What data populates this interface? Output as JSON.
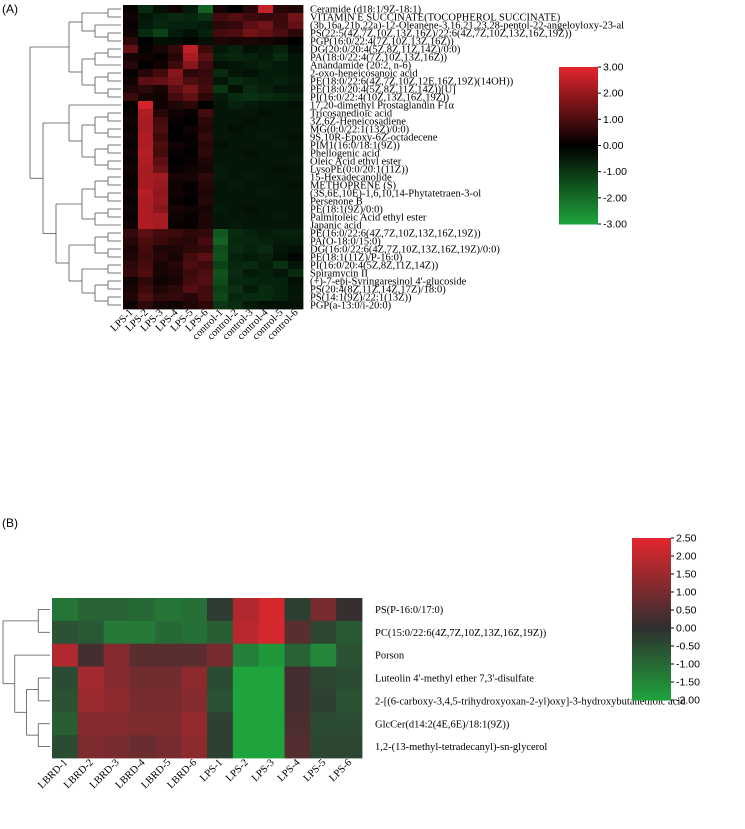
{
  "chart_data": [
    {
      "panel": "(A)",
      "type": "heatmap",
      "columns": [
        "LPS-1",
        "LPS-2",
        "LPS-3",
        "LPS-4",
        "LPS-5",
        "LPS-6",
        "control-1",
        "control-2",
        "control-3",
        "control-4",
        "control-5",
        "control-6"
      ],
      "rows": [
        "Ceramide (d18:1/9Z-18:1)",
        "VITAMIN E SUCCINATE(TOCOPHEROL SUCCINATE)",
        "(3b,16a,21b,22a)-12-Oleanene-3,16,21,23,28-pentol-22-angeloyloxy-23-al",
        "PS(22:5(4Z,7Z,10Z,13Z,16Z)/22:6(4Z,7Z,10Z,13Z,16Z,19Z))",
        "PGP(16:0/22:4(7Z,10Z,13Z,16Z))",
        "DG(20:0/20:4(5Z,8Z,11Z,14Z)/0:0)",
        "PA(18:0/22:4(7Z,10Z,13Z,16Z))",
        "Anandamide (20:2, n-6)",
        "2-oxo-heneicosanoic acid",
        "PE(18:0/22:6(4Z,7Z,10Z,12E,16Z,19Z)(14OH))",
        "PE(18:0/20:4(5Z,8Z,11Z,14Z))[U]",
        "PI(16:0/22:4(10Z,13Z,16Z,19Z))",
        "17,20-dimethyl Prostaglandin F1α",
        "Tricosanedioic acid",
        "3Z,6Z-Heneicosadiene",
        "MG(0:0/22:1(13Z)/0:0)",
        "9S,10R-Epoxy-6Z-octadecene",
        "PIM1(16:0/18:1(9Z))",
        "Phellogenic acid",
        "Oleic Acid ethyl ester",
        "LysoPE(0:0/20:1(11Z))",
        "15-Hexadecanolide",
        "METHOPRENE (S)",
        "(3S,6E,10E)-1,6,10,14-Phytatetraen-3-ol",
        "Persenone B",
        "PE(18:1(9Z)/0:0)",
        "Palmitoleic Acid ethyl ester",
        "Japanic acid",
        "PE(16:0/22:6(4Z,7Z,10Z,13Z,16Z,19Z))",
        "PA(O-18:0/15:0)",
        "DG(16:0/22:6(4Z,7Z,10Z,13Z,16Z,19Z)/0:0)",
        "PE(18:1(11Z)/P-16:0)",
        "PI(16:0/20:4(5Z,8Z,11Z,14Z))",
        "Spiramycin II",
        "(+)-7-epi-Syringaresinol 4'-glucoside",
        "PS(20:4(8Z,11Z,14Z,17Z)/18:0)",
        "PS(14:1(9Z)/22:1(13Z))",
        "PGP(a-13:0/i-20:0)"
      ],
      "values": [
        [
          0.1,
          -0.8,
          -0.3,
          0.2,
          -0.5,
          -1.8,
          0.3,
          0.0,
          0.5,
          2.6,
          0.5,
          0.4
        ],
        [
          0.2,
          -0.4,
          -0.6,
          -0.8,
          -0.7,
          -0.9,
          0.9,
          1.1,
          0.8,
          0.7,
          0.8,
          1.5
        ],
        [
          0.1,
          -0.5,
          -0.7,
          -0.6,
          -0.6,
          -0.5,
          0.6,
          0.7,
          1.2,
          1.5,
          0.8,
          1.3
        ],
        [
          0.2,
          -0.8,
          -1.2,
          -0.5,
          -0.3,
          -0.6,
          0.9,
          1.0,
          1.5,
          1.3,
          1.0,
          0.6
        ],
        [
          0.6,
          0.0,
          -0.3,
          -0.2,
          -0.1,
          -0.3,
          0.4,
          0.3,
          0.4,
          0.3,
          0.2,
          0.0
        ],
        [
          1.3,
          0.1,
          0.3,
          0.7,
          2.5,
          0.8,
          -0.4,
          -0.6,
          -0.3,
          -0.4,
          -0.6,
          -0.2
        ],
        [
          0.3,
          0.2,
          0.1,
          0.5,
          2.2,
          1.2,
          -0.6,
          -0.7,
          -0.6,
          -0.5,
          -0.8,
          -0.4
        ],
        [
          0.5,
          0.0,
          0.2,
          0.8,
          1.8,
          0.9,
          -0.3,
          -0.4,
          -0.5,
          -0.6,
          -0.5,
          -0.4
        ],
        [
          0.1,
          0.5,
          0.9,
          1.8,
          0.6,
          0.7,
          -0.8,
          -0.4,
          -0.3,
          -0.5,
          -0.5,
          -0.4
        ],
        [
          0.2,
          1.2,
          1.3,
          1.6,
          1.0,
          0.8,
          -0.4,
          -0.8,
          -0.6,
          -0.5,
          -0.6,
          -0.5
        ],
        [
          0.4,
          0.6,
          0.3,
          1.2,
          1.6,
          0.9,
          -1.0,
          -0.3,
          -0.8,
          -0.6,
          -0.4,
          -0.4
        ],
        [
          0.8,
          0.3,
          0.2,
          0.9,
          1.3,
          0.6,
          -0.5,
          -0.8,
          -0.9,
          -0.8,
          -0.7,
          -0.6
        ],
        [
          0.0,
          2.8,
          0.2,
          0.4,
          0.6,
          0.0,
          -0.4,
          -0.6,
          -0.5,
          -0.4,
          -0.4,
          -0.3
        ],
        [
          0.1,
          2.3,
          0.5,
          0.2,
          0.1,
          0.9,
          -0.4,
          -0.4,
          -0.4,
          -0.3,
          -0.4,
          -0.4
        ],
        [
          0.2,
          2.2,
          0.9,
          0.1,
          0.0,
          0.6,
          -0.4,
          -0.4,
          -0.3,
          -0.4,
          -0.4,
          -0.4
        ],
        [
          0.1,
          2.2,
          1.0,
          0.0,
          0.2,
          0.5,
          -0.4,
          -0.3,
          -0.4,
          -0.4,
          -0.4,
          -0.4
        ],
        [
          0.2,
          2.3,
          0.8,
          0.0,
          0.1,
          0.7,
          -0.4,
          -0.4,
          -0.4,
          -0.5,
          -0.4,
          -0.3
        ],
        [
          0.1,
          2.3,
          1.0,
          0.2,
          0.1,
          0.5,
          -0.3,
          -0.4,
          -0.4,
          -0.4,
          -0.5,
          -0.4
        ],
        [
          0.2,
          2.4,
          0.9,
          0.1,
          0.0,
          0.6,
          -0.4,
          -0.4,
          -0.3,
          -0.4,
          -0.4,
          -0.4
        ],
        [
          0.1,
          2.3,
          1.2,
          0.0,
          0.1,
          0.4,
          -0.4,
          -0.4,
          -0.4,
          -0.4,
          -0.4,
          -0.5
        ],
        [
          0.2,
          2.2,
          1.4,
          0.1,
          0.2,
          0.3,
          -0.5,
          -0.4,
          -0.4,
          -0.4,
          -0.3,
          -0.4
        ],
        [
          0.1,
          2.2,
          2.1,
          0.3,
          0.3,
          0.6,
          -0.5,
          -0.4,
          -0.5,
          -0.4,
          -0.4,
          -0.4
        ],
        [
          0.1,
          2.2,
          2.0,
          0.2,
          0.1,
          0.5,
          -0.4,
          -0.5,
          -0.4,
          -0.4,
          -0.4,
          -0.3
        ],
        [
          0.2,
          2.4,
          1.9,
          0.2,
          0.1,
          0.4,
          -0.4,
          -0.4,
          -0.4,
          -0.5,
          -0.4,
          -0.4
        ],
        [
          0.1,
          2.3,
          2.0,
          0.1,
          0.0,
          0.5,
          -0.4,
          -0.4,
          -0.4,
          -0.4,
          -0.4,
          -0.4
        ],
        [
          0.2,
          2.3,
          1.8,
          0.3,
          0.2,
          0.3,
          -0.5,
          -0.4,
          -0.3,
          -0.4,
          -0.4,
          -0.4
        ],
        [
          0.1,
          2.3,
          2.2,
          0.2,
          0.1,
          0.4,
          -0.4,
          -0.4,
          -0.4,
          -0.4,
          -0.5,
          -0.4
        ],
        [
          0.2,
          2.3,
          2.2,
          0.1,
          0.1,
          0.4,
          -0.4,
          -0.5,
          -0.4,
          -0.4,
          -0.4,
          -0.4
        ],
        [
          0.7,
          1.2,
          0.9,
          0.8,
          0.6,
          0.7,
          -1.6,
          -0.8,
          -0.6,
          -0.5,
          -0.6,
          -0.6
        ],
        [
          0.5,
          1.0,
          0.8,
          0.6,
          0.5,
          0.9,
          -1.8,
          -0.7,
          -0.7,
          -0.6,
          -0.5,
          -0.5
        ],
        [
          0.3,
          0.9,
          0.4,
          0.4,
          0.6,
          0.7,
          -1.4,
          -0.8,
          -0.6,
          -0.8,
          -0.4,
          -0.3
        ],
        [
          0.4,
          0.8,
          0.5,
          0.3,
          0.9,
          1.2,
          -1.5,
          -0.6,
          -0.5,
          -0.6,
          -0.3,
          -0.1
        ],
        [
          0.6,
          0.9,
          0.3,
          0.5,
          1.0,
          0.8,
          -1.2,
          -0.7,
          -0.8,
          -0.5,
          -0.9,
          -0.4
        ],
        [
          0.7,
          1.0,
          0.3,
          0.4,
          0.8,
          1.0,
          -1.5,
          -0.8,
          -0.5,
          -0.6,
          -0.4,
          -0.8
        ],
        [
          0.2,
          0.6,
          0.2,
          0.3,
          0.9,
          1.1,
          -1.4,
          -0.7,
          -0.7,
          -0.6,
          -0.6,
          -0.3
        ],
        [
          0.3,
          0.8,
          0.4,
          0.6,
          1.1,
          0.9,
          -1.2,
          -0.9,
          -0.5,
          -0.8,
          -0.6,
          -0.4
        ],
        [
          0.4,
          1.0,
          0.6,
          0.7,
          0.5,
          0.9,
          -1.3,
          -0.7,
          -0.8,
          -0.8,
          -0.6,
          -0.4
        ],
        [
          0.2,
          0.6,
          0.3,
          0.2,
          0.4,
          0.6,
          -1.0,
          -0.8,
          -0.5,
          -0.3,
          -0.3,
          -0.3
        ]
      ],
      "colorbar": {
        "min": -3,
        "max": 3,
        "ticks": [
          "3.00",
          "2.00",
          "1.00",
          "0.00",
          "-1.00",
          "-2.00",
          "-3.00"
        ]
      },
      "colors": {
        "low": "#1fa33c",
        "mid": "#000000",
        "high": "#e3262e"
      },
      "dendrogram": "rows"
    },
    {
      "panel": "(B)",
      "type": "heatmap",
      "columns": [
        "LBRD-1",
        "LBRD-2",
        "LBRD-3",
        "LBRD-4",
        "LBRD-5",
        "LBRD-6",
        "LPS-1",
        "LPS-2",
        "LPS-3",
        "LPS-4",
        "LPS-5",
        "LPS-6"
      ],
      "rows": [
        "PS(P-16:0/17:0)",
        "PC(15:0/22:6(4Z,7Z,10Z,13Z,16Z,19Z))",
        "Porson",
        "Luteolin 4'-methyl ether 7,3'-disulfate",
        "2-[(6-carboxy-3,4,5-trihydroxyoxan-2-yl)oxy]-3-hydroxybutanedioic acid",
        "GlcCer(d14:2(4E,6E)/18:1(9Z))",
        "1,2-(13-methyl-tetradecanyl)-sn-glycerol"
      ],
      "values": [
        [
          -1.2,
          -0.9,
          -0.9,
          -1.0,
          -1.2,
          -1.1,
          -0.2,
          1.8,
          2.3,
          -0.3,
          1.0,
          0.1
        ],
        [
          -0.6,
          -0.7,
          -1.3,
          -1.3,
          -1.0,
          -1.1,
          -0.8,
          1.9,
          2.3,
          0.6,
          -0.4,
          -0.7
        ],
        [
          1.8,
          0.3,
          1.2,
          0.6,
          0.6,
          0.6,
          1.0,
          -1.4,
          -1.8,
          -0.9,
          -1.5,
          -0.6
        ],
        [
          -0.5,
          1.6,
          1.2,
          0.9,
          0.9,
          1.3,
          -0.5,
          -2.0,
          -2.0,
          0.3,
          -0.4,
          -0.5
        ],
        [
          -0.6,
          1.5,
          1.3,
          1.0,
          1.0,
          1.2,
          -0.6,
          -2.0,
          -2.0,
          0.3,
          -0.3,
          -0.6
        ],
        [
          -0.8,
          1.2,
          1.2,
          1.1,
          1.1,
          1.4,
          -0.3,
          -2.0,
          -2.0,
          0.4,
          -0.5,
          -0.5
        ],
        [
          -0.5,
          1.1,
          1.0,
          0.8,
          1.0,
          1.3,
          -0.3,
          -2.0,
          -2.0,
          0.5,
          -0.4,
          -0.4
        ]
      ],
      "colorbar": {
        "min": -2,
        "max": 2.5,
        "ticks": [
          "2.50",
          "2.00",
          "1.50",
          "1.00",
          "0.50",
          "0.00",
          "-0.50",
          "-1.00",
          "-1.50",
          "-2.00"
        ]
      },
      "colors": {
        "low": "#1fa33c",
        "mid": "#2f2f2f",
        "high": "#e3262e"
      },
      "dendrogram": "rows"
    }
  ]
}
